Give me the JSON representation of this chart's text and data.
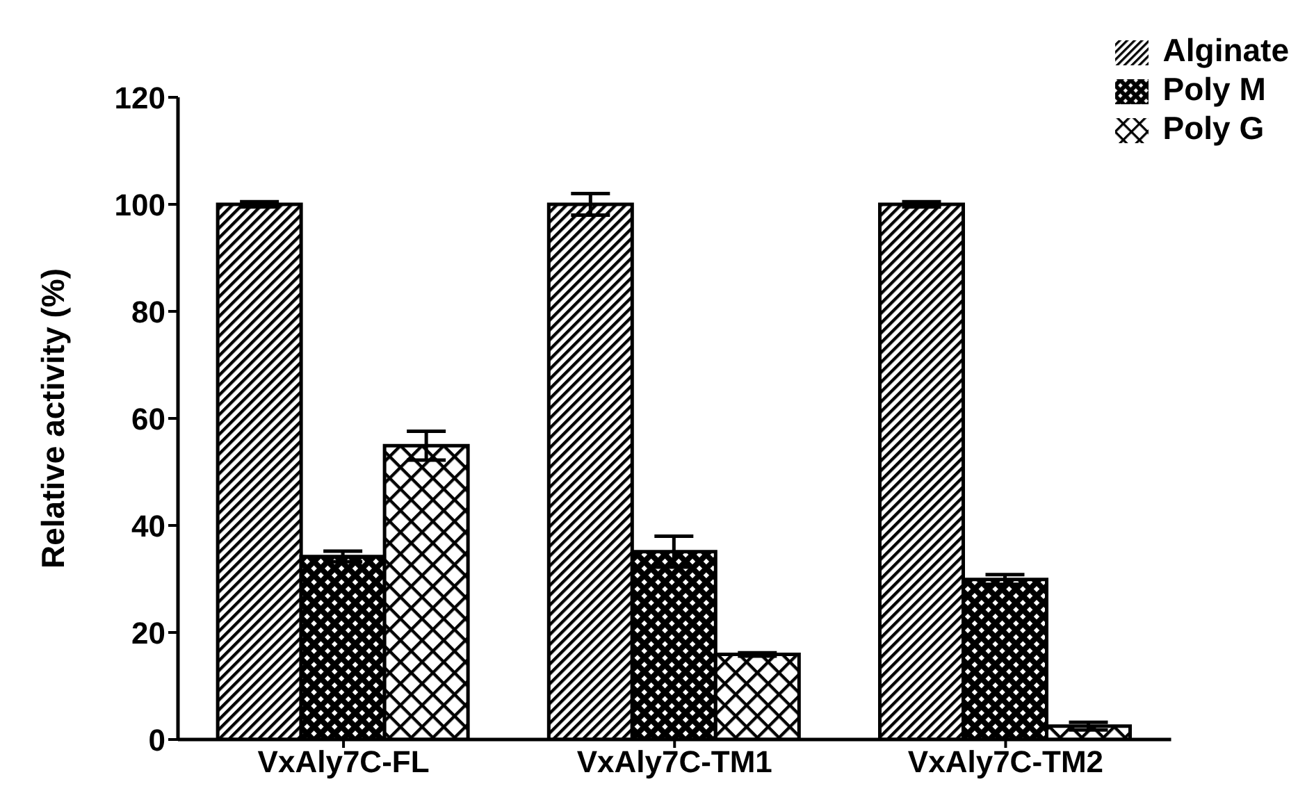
{
  "chart_data": {
    "type": "bar",
    "ylabel": "Relative activity (%)",
    "categories": [
      "VxAly7C-FL",
      "VxAly7C-TM1",
      "VxAly7C-TM2"
    ],
    "series": [
      {
        "name": "Alginate",
        "color": "#000000",
        "values": [
          100,
          100,
          100
        ],
        "errors": [
          0.5,
          2,
          0.5
        ]
      },
      {
        "name": "Poly M",
        "color": "#000000",
        "values": [
          34.2,
          35.1,
          29.9
        ],
        "errors": [
          1,
          2.9,
          0.9
        ]
      },
      {
        "name": "Poly G",
        "color": "#000000",
        "values": [
          54.9,
          15.9,
          2.5
        ],
        "errors": [
          2.7,
          0.3,
          0.7
        ]
      }
    ],
    "ylim": [
      0,
      120
    ],
    "yticks": [
      0,
      20,
      40,
      60,
      80,
      100,
      120
    ],
    "legend": "top right"
  }
}
